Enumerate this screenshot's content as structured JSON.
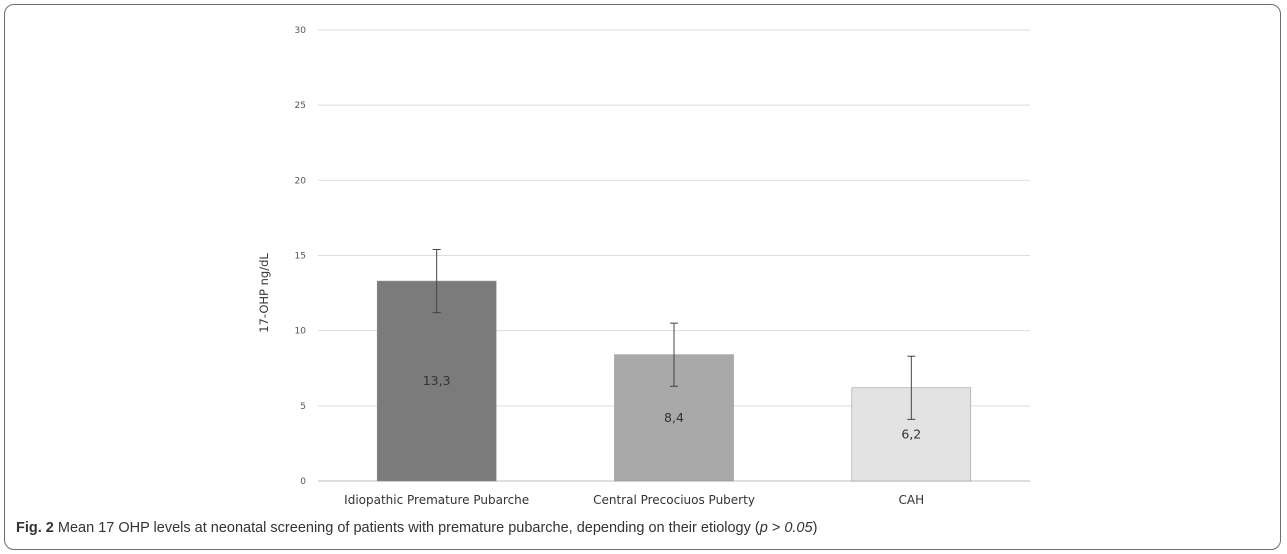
{
  "caption": {
    "fig_label": "Fig. 2",
    "text_before": " Mean 17 OHP levels at neonatal screening of patients with premature pubarche, depending on their etiology (",
    "p_symbol": "p",
    "p_relation": " > ",
    "p_value": "0.05",
    "text_after": ")"
  },
  "chart_data": {
    "type": "bar",
    "title": "",
    "xlabel": "",
    "ylabel": "17-OHP ng/dL",
    "ylim": [
      0,
      30
    ],
    "yticks": [
      0,
      5,
      10,
      15,
      20,
      25,
      30
    ],
    "grid": true,
    "categories": [
      "Idiopathic Premature Pubarche",
      "Central Precociuos Puberty",
      "CAH"
    ],
    "values": [
      13.3,
      8.4,
      6.2
    ],
    "value_labels": [
      "13,3",
      "8,4",
      "6,2"
    ],
    "error_bars": [
      {
        "low": 11.2,
        "high": 15.4
      },
      {
        "low": 6.3,
        "high": 10.5
      },
      {
        "low": 4.1,
        "high": 8.3
      }
    ],
    "colors": [
      "#7b7b7b",
      "#a9a9a9",
      "#e3e3e3"
    ]
  }
}
